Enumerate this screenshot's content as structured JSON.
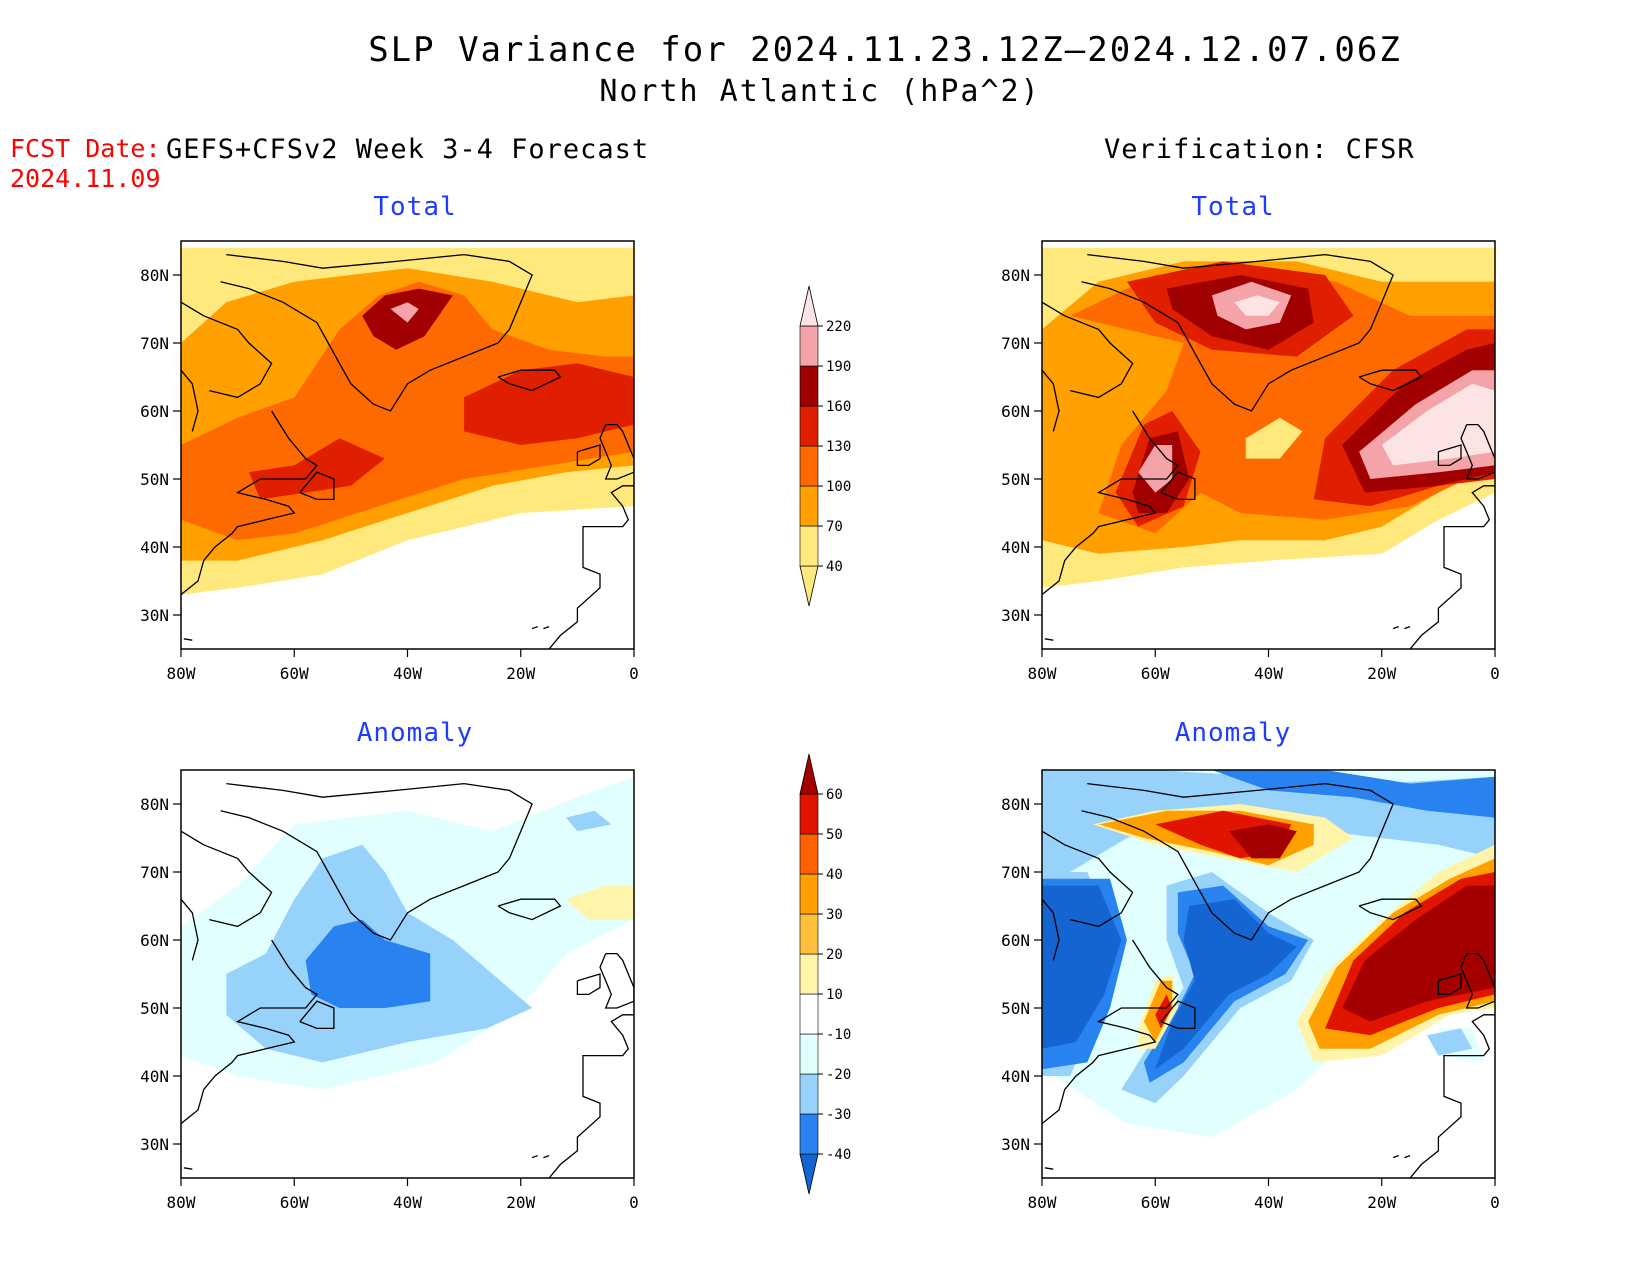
{
  "title": {
    "line1": "SLP Variance for 2024.11.23.12Z–2024.12.07.06Z",
    "line2": "North Atlantic (hPa^2)"
  },
  "forecast_date": {
    "label": "FCST Date:",
    "value": "2024.11.09"
  },
  "columns": {
    "left": "GEFS+CFSv2 Week 3-4 Forecast",
    "right": "Verification: CFSR"
  },
  "rows": {
    "top": "Total",
    "bottom": "Anomaly"
  },
  "map": {
    "region": "North Atlantic",
    "lon_ticks": [
      "80W",
      "60W",
      "40W",
      "20W",
      "0"
    ],
    "lat_ticks": [
      "80N",
      "70N",
      "60N",
      "50N",
      "40N",
      "30N"
    ]
  },
  "total_colorbar": {
    "levels": [
      "40",
      "70",
      "100",
      "130",
      "160",
      "190",
      "220"
    ],
    "colors": [
      "#ffe87c",
      "#ffa000",
      "#ff6a00",
      "#e01e00",
      "#a00000",
      "#f4a3a8",
      "#fde4e4"
    ]
  },
  "anomaly_colorbar": {
    "levels": [
      "-40",
      "-30",
      "-20",
      "-10",
      "10",
      "20",
      "30",
      "40",
      "50",
      "60"
    ],
    "colors": [
      "#1464d2",
      "#2882f0",
      "#96d2fa",
      "#e1ffff",
      "#ffffff",
      "#fff5aa",
      "#ffc03c",
      "#ffa000",
      "#ff6000",
      "#e11400",
      "#a50000"
    ]
  },
  "palette": {
    "t40": "#ffe87c",
    "t70": "#ffa000",
    "t100": "#ff6a00",
    "t130": "#e01e00",
    "t160": "#a00000",
    "t190": "#f4a3a8",
    "t220": "#fde4e4",
    "a_m40": "#1464d2",
    "a_m30": "#2882f0",
    "a_m20": "#96d2fa",
    "a_m10": "#e1ffff",
    "a_10": "#fff5aa",
    "a_20": "#ffc03c",
    "a_30": "#ffa000",
    "a_40": "#ff6000",
    "a_50": "#e11400",
    "a_60": "#a50000"
  }
}
